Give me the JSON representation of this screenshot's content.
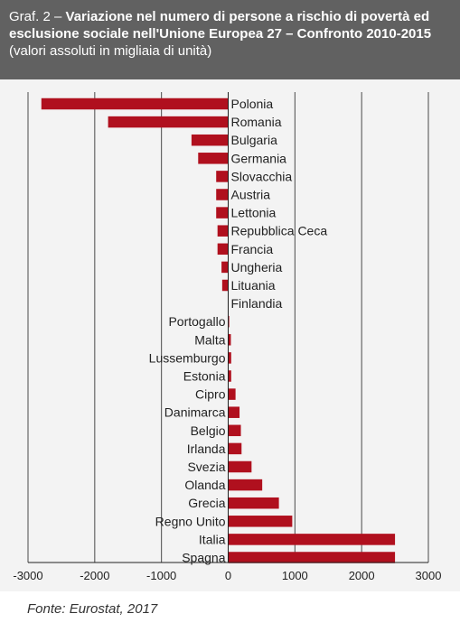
{
  "header": {
    "prefix": "Graf. 2 – ",
    "title": "Variazione nel numero di persone a rischio di povertà ed esclusione sociale nell'Unione Europea 27 – Confronto 2010-2015",
    "subtitle": "(valori assoluti in migliaia di unità)"
  },
  "source": "Fonte: Eurostat, 2017",
  "chart_data": {
    "type": "bar",
    "orientation": "horizontal",
    "categories": [
      "Polonia",
      "Romania",
      "Bulgaria",
      "Germania",
      "Slovacchia",
      "Austria",
      "Lettonia",
      "Repubblica Ceca",
      "Francia",
      "Ungheria",
      "Lituania",
      "Finlandia",
      "Portogallo",
      "Malta",
      "Lussemburgo",
      "Estonia",
      "Cipro",
      "Danimarca",
      "Belgio",
      "Irlanda",
      "Svezia",
      "Olanda",
      "Grecia",
      "Regno Unito",
      "Italia",
      "Spagna"
    ],
    "values": [
      -2800,
      -1800,
      -550,
      -450,
      -180,
      -180,
      -180,
      -160,
      -160,
      -100,
      -90,
      -5,
      15,
      40,
      45,
      45,
      110,
      170,
      190,
      200,
      350,
      510,
      760,
      960,
      2500,
      2500
    ],
    "xlim": [
      -3000,
      3000
    ],
    "xticks": [
      -3000,
      -2000,
      -1000,
      0,
      1000,
      2000,
      3000
    ],
    "xtick_labels": [
      "-3000",
      "-2000",
      "-1000",
      "0",
      "1000",
      "2000",
      "3000"
    ],
    "grid": true,
    "bar_color": "#b0101e"
  }
}
